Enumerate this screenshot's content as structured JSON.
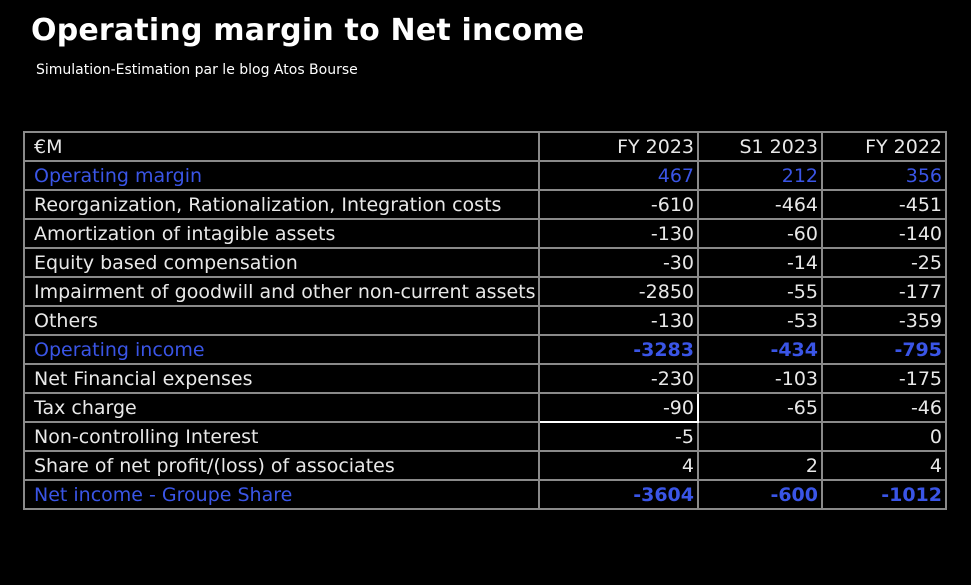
{
  "header": {
    "title": "Operating margin to Net income",
    "subtitle": "Simulation-Estimation par le blog Atos Bourse"
  },
  "colors": {
    "background": "#000000",
    "text": "#ffffff",
    "highlight": "#3a55e6",
    "grid": "#8a8a8a"
  },
  "table": {
    "columns": [
      "€M",
      "FY 2023",
      "S1 2023",
      "FY 2022"
    ],
    "rows": [
      {
        "label": "Operating margin",
        "values": [
          "467",
          "212",
          "356"
        ],
        "highlight": true
      },
      {
        "label": "Reorganization, Rationalization, Integration costs",
        "values": [
          "-610",
          "-464",
          "-451"
        ],
        "highlight": false
      },
      {
        "label": "Amortization of intagible assets",
        "values": [
          "-130",
          "-60",
          "-140"
        ],
        "highlight": false
      },
      {
        "label": "Equity based compensation",
        "values": [
          "-30",
          "-14",
          "-25"
        ],
        "highlight": false
      },
      {
        "label": "Impairment of goodwill and other non-current assets",
        "values": [
          "-2850",
          "-55",
          "-177"
        ],
        "highlight": false
      },
      {
        "label": "Others",
        "values": [
          "-130",
          "-53",
          "-359"
        ],
        "highlight": false
      },
      {
        "label": "Operating income",
        "values": [
          "-3283",
          "-434",
          "-795"
        ],
        "highlight": true
      },
      {
        "label": "Net Financial expenses",
        "values": [
          "-230",
          "-103",
          "-175"
        ],
        "highlight": false
      },
      {
        "label": "Tax charge",
        "values": [
          "-90",
          "-65",
          "-46"
        ],
        "highlight": false
      },
      {
        "label": "Non-controlling Interest",
        "values": [
          "-5",
          "",
          "0"
        ],
        "highlight": false
      },
      {
        "label": "Share of net profit/(loss) of associates",
        "values": [
          "4",
          "2",
          "4"
        ],
        "highlight": false
      },
      {
        "label": "Net income - Groupe Share",
        "values": [
          "-3604",
          "-600",
          "-1012"
        ],
        "highlight": true
      }
    ]
  }
}
